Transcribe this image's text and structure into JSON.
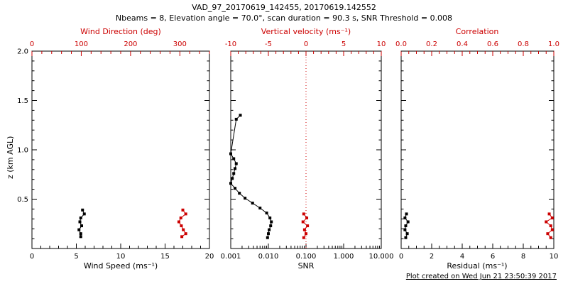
{
  "header": {
    "title": "VAD_97_20170619_142455, 20170619.142552",
    "subtitle": "Nbeams = 8, Elevation angle = 70.0°, scan duration = 90.3 s, SNR Threshold = 0.008"
  },
  "footer": {
    "created": "Plot created on Wed Jun 21 23:50:39 2017"
  },
  "colors": {
    "accent": "#cc0000",
    "black": "#000000"
  },
  "chart_data": {
    "type": "scatter",
    "title": "VAD_97_20170619_142455, 20170619.142552",
    "subtitle": "Nbeams = 8, Elevation angle = 70.0°, scan duration = 90.3 s, SNR Threshold = 0.008",
    "grid": false,
    "y_axis": {
      "label": "z (km AGL)",
      "min": 0,
      "max": 2,
      "tick_values": [
        0.5,
        1.0,
        1.5,
        2.0
      ],
      "tick_labels": [
        "0.5",
        "1.0",
        "1.5",
        "2.0"
      ],
      "minor_step": 0.1
    },
    "panels": [
      {
        "bottom_axis": {
          "label": "Wind Speed (ms⁻¹)",
          "scale": "linear",
          "min": 0,
          "max": 20,
          "tick_values": [
            0,
            5,
            10,
            15,
            20
          ],
          "tick_labels": [
            "0",
            "5",
            "10",
            "15",
            "20"
          ],
          "minor_step": 1
        },
        "top_axis": {
          "label": "Wind Direction (deg)",
          "scale": "linear",
          "min": 0,
          "max": 360,
          "tick_values": [
            0,
            100,
            200,
            300
          ],
          "tick_labels": [
            "0",
            "100",
            "200",
            "300"
          ],
          "minor_step": 20
        },
        "series": [
          {
            "name": "wind_speed",
            "axis": "bottom",
            "color": "#000000",
            "points": [
              [
                5.7,
                0.39
              ],
              [
                5.9,
                0.35
              ],
              [
                5.5,
                0.31
              ],
              [
                5.4,
                0.27
              ],
              [
                5.6,
                0.23
              ],
              [
                5.3,
                0.19
              ],
              [
                5.5,
                0.15
              ],
              [
                5.5,
                0.12
              ]
            ]
          },
          {
            "name": "wind_direction",
            "axis": "top",
            "color": "#cc0000",
            "points": [
              [
                306,
                0.39
              ],
              [
                312,
                0.35
              ],
              [
                302,
                0.31
              ],
              [
                298,
                0.27
              ],
              [
                303,
                0.23
              ],
              [
                307,
                0.19
              ],
              [
                312,
                0.15
              ],
              [
                304,
                0.12
              ]
            ]
          }
        ]
      },
      {
        "bottom_axis": {
          "label": "SNR",
          "scale": "log",
          "min": 0.001,
          "max": 10,
          "tick_values": [
            0.001,
            0.01,
            0.1,
            1,
            10
          ],
          "tick_labels": [
            "0.001",
            "0.010",
            "0.100",
            "1.000",
            "10.000"
          ]
        },
        "top_axis": {
          "label": "Vertical velocity (ms⁻¹)",
          "scale": "linear",
          "min": -10,
          "max": 10,
          "tick_values": [
            -10,
            -5,
            0,
            5,
            10
          ],
          "tick_labels": [
            "-10",
            "-5",
            "0",
            "5",
            "10"
          ],
          "minor_step": 1
        },
        "ref_line": {
          "axis": "top",
          "value": 0,
          "color": "#cc0000",
          "style": "dotted"
        },
        "series": [
          {
            "name": "snr",
            "axis": "bottom",
            "color": "#000000",
            "points": [
              [
                0.0018,
                1.35
              ],
              [
                0.0014,
                1.31
              ],
              [
                0.001,
                0.96
              ],
              [
                0.0012,
                0.91
              ],
              [
                0.0014,
                0.86
              ],
              [
                0.0013,
                0.81
              ],
              [
                0.0012,
                0.76
              ],
              [
                0.0011,
                0.71
              ],
              [
                0.001,
                0.66
              ],
              [
                0.0013,
                0.61
              ],
              [
                0.0017,
                0.56
              ],
              [
                0.0024,
                0.51
              ],
              [
                0.0038,
                0.46
              ],
              [
                0.006,
                0.41
              ],
              [
                0.009,
                0.36
              ],
              [
                0.011,
                0.31
              ],
              [
                0.012,
                0.27
              ],
              [
                0.0115,
                0.23
              ],
              [
                0.0105,
                0.19
              ],
              [
                0.01,
                0.15
              ],
              [
                0.0095,
                0.11
              ]
            ]
          },
          {
            "name": "vertical_velocity",
            "axis": "top",
            "color": "#cc0000",
            "points": [
              [
                -0.3,
                0.35
              ],
              [
                0.1,
                0.31
              ],
              [
                -0.4,
                0.27
              ],
              [
                0.2,
                0.23
              ],
              [
                -0.2,
                0.19
              ],
              [
                0.0,
                0.15
              ],
              [
                -0.3,
                0.11
              ]
            ]
          }
        ]
      },
      {
        "bottom_axis": {
          "label": "Residual (ms⁻¹)",
          "scale": "linear",
          "min": 0,
          "max": 10,
          "tick_values": [
            0,
            2,
            4,
            6,
            8,
            10
          ],
          "tick_labels": [
            "0",
            "2",
            "4",
            "6",
            "8",
            "10"
          ],
          "minor_step": 0.5
        },
        "top_axis": {
          "label": "Correlation",
          "scale": "linear",
          "min": 0,
          "max": 1,
          "tick_values": [
            0,
            0.2,
            0.4,
            0.6,
            0.8,
            1.0
          ],
          "tick_labels": [
            "0.0",
            "0.2",
            "0.4",
            "0.6",
            "0.8",
            "1.0"
          ],
          "minor_step": 0.05
        },
        "series": [
          {
            "name": "residual",
            "axis": "bottom",
            "color": "#000000",
            "points": [
              [
                0.35,
                0.35
              ],
              [
                0.25,
                0.31
              ],
              [
                0.45,
                0.27
              ],
              [
                0.3,
                0.23
              ],
              [
                0.25,
                0.19
              ],
              [
                0.4,
                0.15
              ],
              [
                0.3,
                0.11
              ]
            ]
          },
          {
            "name": "correlation",
            "axis": "top",
            "color": "#cc0000",
            "points": [
              [
                0.97,
                0.35
              ],
              [
                0.99,
                0.31
              ],
              [
                0.95,
                0.27
              ],
              [
                0.98,
                0.23
              ],
              [
                0.99,
                0.19
              ],
              [
                0.96,
                0.15
              ],
              [
                0.98,
                0.11
              ]
            ]
          }
        ]
      }
    ]
  }
}
